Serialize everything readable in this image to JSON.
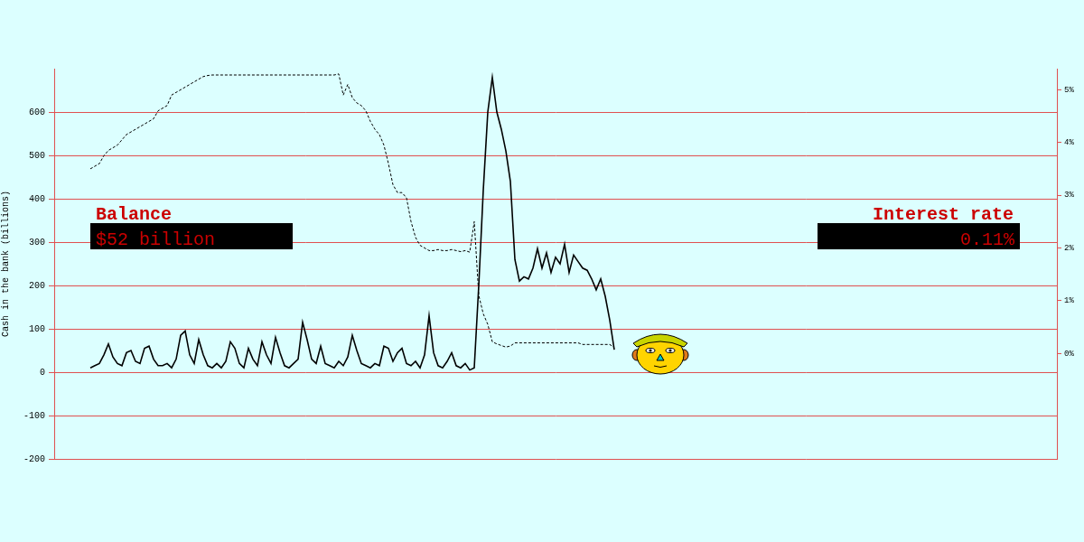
{
  "chart_data": {
    "type": "line",
    "y_label": "Cash in the bank (billions)",
    "annotations": [
      {
        "label": "Balance",
        "text": "$52 billion"
      },
      {
        "label": "Interest rate",
        "text": "0.11%"
      }
    ],
    "x": [
      8,
      9,
      10,
      11,
      12,
      13,
      14,
      15,
      16,
      17,
      18,
      19,
      20,
      21,
      22,
      23,
      24,
      25,
      26,
      27,
      28,
      29,
      30,
      31,
      32,
      33,
      34,
      35,
      36,
      37,
      38,
      39,
      40,
      41,
      42,
      43,
      44,
      45,
      46,
      47,
      48,
      49,
      50,
      51,
      52,
      53,
      54,
      55,
      56,
      57,
      58,
      59,
      60,
      61,
      62,
      63,
      64,
      65,
      66,
      67,
      68,
      69,
      70,
      71,
      72,
      73,
      74,
      75,
      76,
      77,
      78,
      79,
      80,
      81,
      82,
      83,
      84,
      85,
      86,
      87,
      88,
      89,
      90,
      91,
      92,
      93,
      94,
      95,
      96,
      97,
      98,
      99,
      100,
      101,
      102,
      103,
      104,
      105,
      106,
      107,
      108,
      109,
      110,
      111,
      112,
      113,
      114,
      115,
      116,
      117,
      118,
      119,
      120,
      121,
      122,
      123,
      124
    ],
    "xlim": [
      0,
      222
    ],
    "ylim": [
      -200,
      700
    ],
    "yticks": [
      -200,
      -100,
      0,
      100,
      200,
      300,
      400,
      500,
      600
    ],
    "y2lim": [
      -2,
      5.4
    ],
    "y2ticks": [
      {
        "value": 0,
        "label": "0%"
      },
      {
        "value": 1,
        "label": "1%"
      },
      {
        "value": 2,
        "label": "2%"
      },
      {
        "value": 3,
        "label": "3%"
      },
      {
        "value": 4,
        "label": "4%"
      },
      {
        "value": 5,
        "label": "5%"
      }
    ],
    "series": [
      {
        "name": "Balance",
        "color": "#000000",
        "line_style": "solid",
        "values": [
          10,
          15,
          20,
          40,
          65,
          35,
          20,
          15,
          45,
          50,
          25,
          20,
          55,
          60,
          30,
          15,
          15,
          20,
          10,
          30,
          85,
          95,
          40,
          20,
          75,
          40,
          15,
          10,
          20,
          10,
          25,
          70,
          55,
          20,
          10,
          55,
          30,
          15,
          70,
          40,
          20,
          80,
          45,
          15,
          10,
          20,
          30,
          115,
          75,
          30,
          20,
          60,
          20,
          15,
          10,
          25,
          15,
          35,
          85,
          50,
          20,
          15,
          10,
          20,
          15,
          60,
          55,
          25,
          45,
          55,
          20,
          15,
          25,
          10,
          40,
          130,
          45,
          15,
          10,
          25,
          45,
          15,
          10,
          20,
          5,
          10,
          200,
          420,
          600,
          680,
          600,
          560,
          510,
          440,
          260,
          210,
          220,
          215,
          240,
          285,
          240,
          275,
          230,
          265,
          250,
          295,
          230,
          270,
          255,
          240,
          235,
          215,
          190,
          215,
          175,
          120,
          52
        ]
      },
      {
        "name": "Interest rate",
        "color": "#000000",
        "line_style": "dashed",
        "axis": "y2",
        "values": [
          3.5,
          3.55,
          3.6,
          3.75,
          3.85,
          3.9,
          3.95,
          4.05,
          4.15,
          4.2,
          4.25,
          4.3,
          4.35,
          4.4,
          4.45,
          4.6,
          4.65,
          4.7,
          4.9,
          4.95,
          5.0,
          5.05,
          5.1,
          5.15,
          5.2,
          5.25,
          5.27,
          5.28,
          5.28,
          5.28,
          5.28,
          5.28,
          5.28,
          5.28,
          5.28,
          5.28,
          5.28,
          5.28,
          5.28,
          5.28,
          5.28,
          5.28,
          5.28,
          5.28,
          5.28,
          5.28,
          5.28,
          5.28,
          5.28,
          5.28,
          5.28,
          5.28,
          5.28,
          5.28,
          5.28,
          5.3,
          4.9,
          5.1,
          4.85,
          4.75,
          4.7,
          4.6,
          4.4,
          4.25,
          4.15,
          3.95,
          3.6,
          3.2,
          3.05,
          3.05,
          2.95,
          2.5,
          2.2,
          2.05,
          2.0,
          1.95,
          1.95,
          1.97,
          1.95,
          1.95,
          1.97,
          1.95,
          1.93,
          1.95,
          1.92,
          2.5,
          1.1,
          0.75,
          0.55,
          0.22,
          0.18,
          0.15,
          0.12,
          0.14,
          0.2,
          0.2,
          0.2,
          0.2,
          0.2,
          0.2,
          0.2,
          0.2,
          0.2,
          0.2,
          0.2,
          0.2,
          0.2,
          0.2,
          0.2,
          0.17,
          0.17,
          0.17,
          0.17,
          0.17,
          0.17,
          0.17,
          0.11
        ]
      }
    ]
  }
}
